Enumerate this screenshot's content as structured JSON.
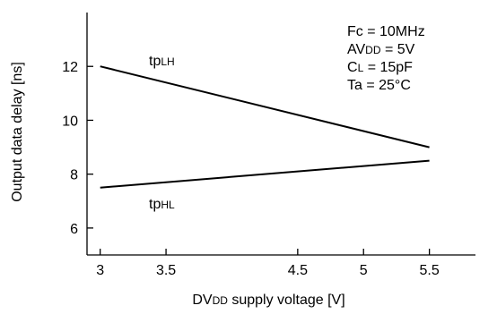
{
  "chart_data": {
    "type": "line",
    "xlabel": {
      "main": "DV",
      "sub": "DD",
      "rest": " supply voltage [V]"
    },
    "ylabel": "Output data delay [ns]",
    "xlim": [
      2.9,
      5.85
    ],
    "ylim": [
      5.0,
      14.0
    ],
    "x_ticks": [
      3,
      3.5,
      4.5,
      5,
      5.5
    ],
    "x_tick_labels": [
      "3",
      "3.5",
      "4.5",
      "5",
      "5.5"
    ],
    "y_ticks": [
      6,
      8,
      10,
      12
    ],
    "y_tick_labels": [
      "6",
      "8",
      "10",
      "12"
    ],
    "grid": false,
    "series": [
      {
        "name": "tpLH",
        "label_main": "tp",
        "label_sub": "LH",
        "x": [
          3,
          5.5
        ],
        "y": [
          12.0,
          9.0
        ]
      },
      {
        "name": "tpHL",
        "label_main": "tp",
        "label_sub": "HL",
        "x": [
          3,
          5.5
        ],
        "y": [
          7.5,
          8.5
        ]
      }
    ],
    "annotations": [
      {
        "parts": [
          {
            "t": "Fc = 10MHz",
            "sub": false
          }
        ]
      },
      {
        "parts": [
          {
            "t": "AV",
            "sub": false
          },
          {
            "t": "DD",
            "sub": true
          },
          {
            "t": " = 5V",
            "sub": false
          }
        ]
      },
      {
        "parts": [
          {
            "t": "C",
            "sub": false
          },
          {
            "t": "L",
            "sub": true
          },
          {
            "t": " = 15pF",
            "sub": false
          }
        ]
      },
      {
        "parts": [
          {
            "t": "Ta = 25°C",
            "sub": false
          }
        ]
      }
    ]
  }
}
